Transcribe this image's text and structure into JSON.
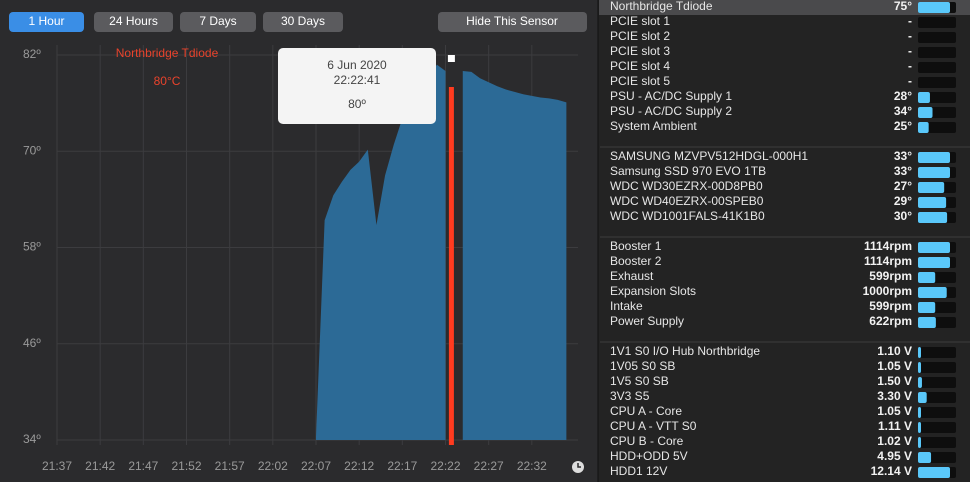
{
  "toolbar": {
    "ranges": [
      "1 Hour",
      "24 Hours",
      "7 Days",
      "30 Days"
    ],
    "active_index": 0,
    "hide_button": "Hide This Sensor"
  },
  "chart_data": {
    "type": "area",
    "title": "Northbridge Tdiode",
    "subtitle": "80°C",
    "color": "#2c6a96",
    "grid": true,
    "x": [
      "22:07",
      "22:08",
      "22:09",
      "22:10",
      "22:11",
      "22:12",
      "22:13",
      "22:14",
      "22:15",
      "22:16",
      "22:17",
      "22:18",
      "22:19",
      "22:20",
      "22:21",
      "22:22",
      "22:23",
      "22:24",
      "22:25",
      "22:26",
      "22:27",
      "22:28",
      "22:29",
      "22:30",
      "22:31",
      "22:32",
      "22:33",
      "22:34",
      "22:35",
      "22:36"
    ],
    "values": [
      34.4,
      61.4,
      64.5,
      66.2,
      67.7,
      68.7,
      70.2,
      60.8,
      67,
      70.8,
      74.1,
      76.4,
      77.6,
      78.9,
      80.8,
      80,
      null,
      80,
      79.9,
      79.1,
      78.6,
      78.1,
      77.7,
      77.4,
      77.1,
      76.9,
      76.7,
      76.6,
      76.4,
      76.1
    ],
    "xlim": [
      "21:37",
      "22:37"
    ],
    "xticks": [
      "21:37",
      "21:42",
      "21:47",
      "21:52",
      "21:57",
      "22:02",
      "22:07",
      "22:12",
      "22:17",
      "22:22",
      "22:27",
      "22:32"
    ],
    "ylim": [
      34,
      82
    ],
    "yticks": [
      {
        "value": 34,
        "label": "34º"
      },
      {
        "value": 46,
        "label": "46º"
      },
      {
        "value": 58,
        "label": "58º"
      },
      {
        "value": 70,
        "label": "70º"
      },
      {
        "value": 82,
        "label": "82º"
      }
    ],
    "tooltip": {
      "date": "6 Jun 2020",
      "time": "22:22:41",
      "value": "80º"
    }
  },
  "sensors": {
    "groups": [
      {
        "rows": [
          {
            "name": "Northbridge Tdiode",
            "value": "75°"
          },
          {
            "name": "PCIE slot 1",
            "value": "-"
          },
          {
            "name": "PCIE slot 2",
            "value": "-"
          },
          {
            "name": "PCIE slot 3",
            "value": "-"
          },
          {
            "name": "PCIE slot 4",
            "value": "-"
          },
          {
            "name": "PCIE slot 5",
            "value": "-"
          },
          {
            "name": "PSU - AC/DC Supply 1",
            "value": "28°"
          },
          {
            "name": "PSU - AC/DC Supply 2",
            "value": "34°"
          },
          {
            "name": "System Ambient",
            "value": "25°"
          }
        ]
      },
      {
        "rows": [
          {
            "name": "SAMSUNG MZVPV512HDGL-000H1",
            "value": "33°"
          },
          {
            "name": "Samsung SSD 970 EVO 1TB",
            "value": "33°"
          },
          {
            "name": "WDC WD30EZRX-00D8PB0",
            "value": "27°"
          },
          {
            "name": "WDC WD40EZRX-00SPEB0",
            "value": "29°"
          },
          {
            "name": "WDC WD1001FALS-41K1B0",
            "value": "30°"
          }
        ]
      },
      {
        "rows": [
          {
            "name": "Booster 1",
            "value": "1114rpm"
          },
          {
            "name": "Booster 2",
            "value": "1114rpm"
          },
          {
            "name": "Exhaust",
            "value": "599rpm"
          },
          {
            "name": "Expansion Slots",
            "value": "1000rpm"
          },
          {
            "name": "Intake",
            "value": "599rpm"
          },
          {
            "name": "Power Supply",
            "value": "622rpm"
          }
        ]
      },
      {
        "rows": [
          {
            "name": "1V1 S0 I/O Hub Northbridge",
            "value": "1.10 V"
          },
          {
            "name": "1V05 S0 SB",
            "value": "1.05 V"
          },
          {
            "name": "1V5 S0 SB",
            "value": "1.50 V"
          },
          {
            "name": "3V3 S5",
            "value": "3.30 V"
          },
          {
            "name": "CPU A - Core",
            "value": "1.05 V"
          },
          {
            "name": "CPU A - VTT S0",
            "value": "1.11 V"
          },
          {
            "name": "CPU B - Core",
            "value": "1.02 V"
          },
          {
            "name": "HDD+ODD 5V",
            "value": "4.95 V"
          },
          {
            "name": "HDD1 12V",
            "value": "12.14 V"
          }
        ]
      }
    ]
  }
}
